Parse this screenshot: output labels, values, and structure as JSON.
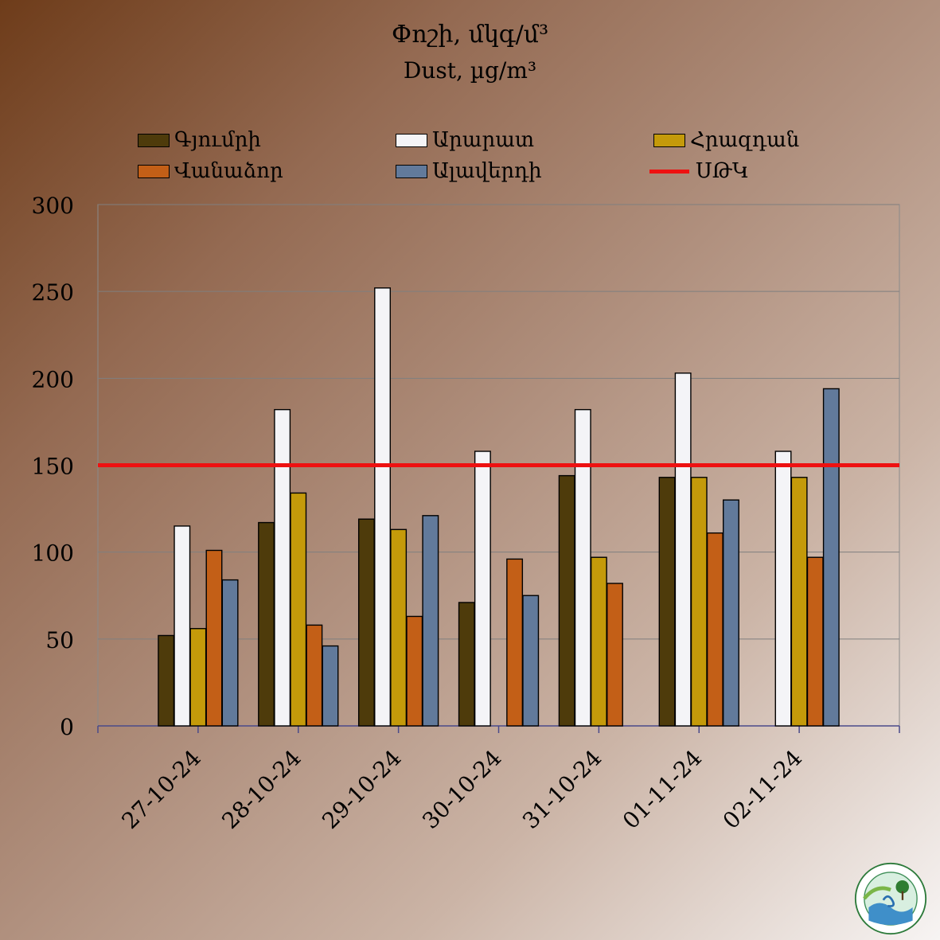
{
  "title": "Փոշի, մկգ/մ³",
  "subtitle": "Dust, µg/m³",
  "colors": {
    "gyumri": "#4e3b0b",
    "ararat": "#f4f4f7",
    "hrazdan": "#c49a0a",
    "vanadzor": "#c35f17",
    "alaverdi": "#627a9b",
    "limit": "#ee1111"
  },
  "chart_data": {
    "type": "bar",
    "categories": [
      "27-10-24",
      "28-10-24",
      "29-10-24",
      "30-10-24",
      "31-10-24",
      "01-11-24",
      "02-11-24"
    ],
    "series": [
      {
        "name": "Գյումրի",
        "values": [
          52,
          117,
          119,
          71,
          144,
          143,
          null
        ]
      },
      {
        "name": "Արարատ",
        "values": [
          115,
          182,
          252,
          158,
          182,
          203,
          158
        ]
      },
      {
        "name": "Հրազդան",
        "values": [
          56,
          134,
          113,
          null,
          97,
          143,
          143
        ]
      },
      {
        "name": "Վանաձոր",
        "values": [
          101,
          58,
          63,
          96,
          82,
          111,
          97
        ]
      },
      {
        "name": "Ալավերդի",
        "values": [
          84,
          46,
          121,
          75,
          null,
          130,
          194
        ]
      }
    ],
    "reference_line": {
      "name": "ՍԹԿ",
      "value": 150
    },
    "ylim": [
      0,
      300
    ],
    "yticks": [
      0,
      50,
      100,
      150,
      200,
      250,
      300
    ],
    "xlabel": "",
    "ylabel": "",
    "grid": true,
    "legend": "top"
  }
}
